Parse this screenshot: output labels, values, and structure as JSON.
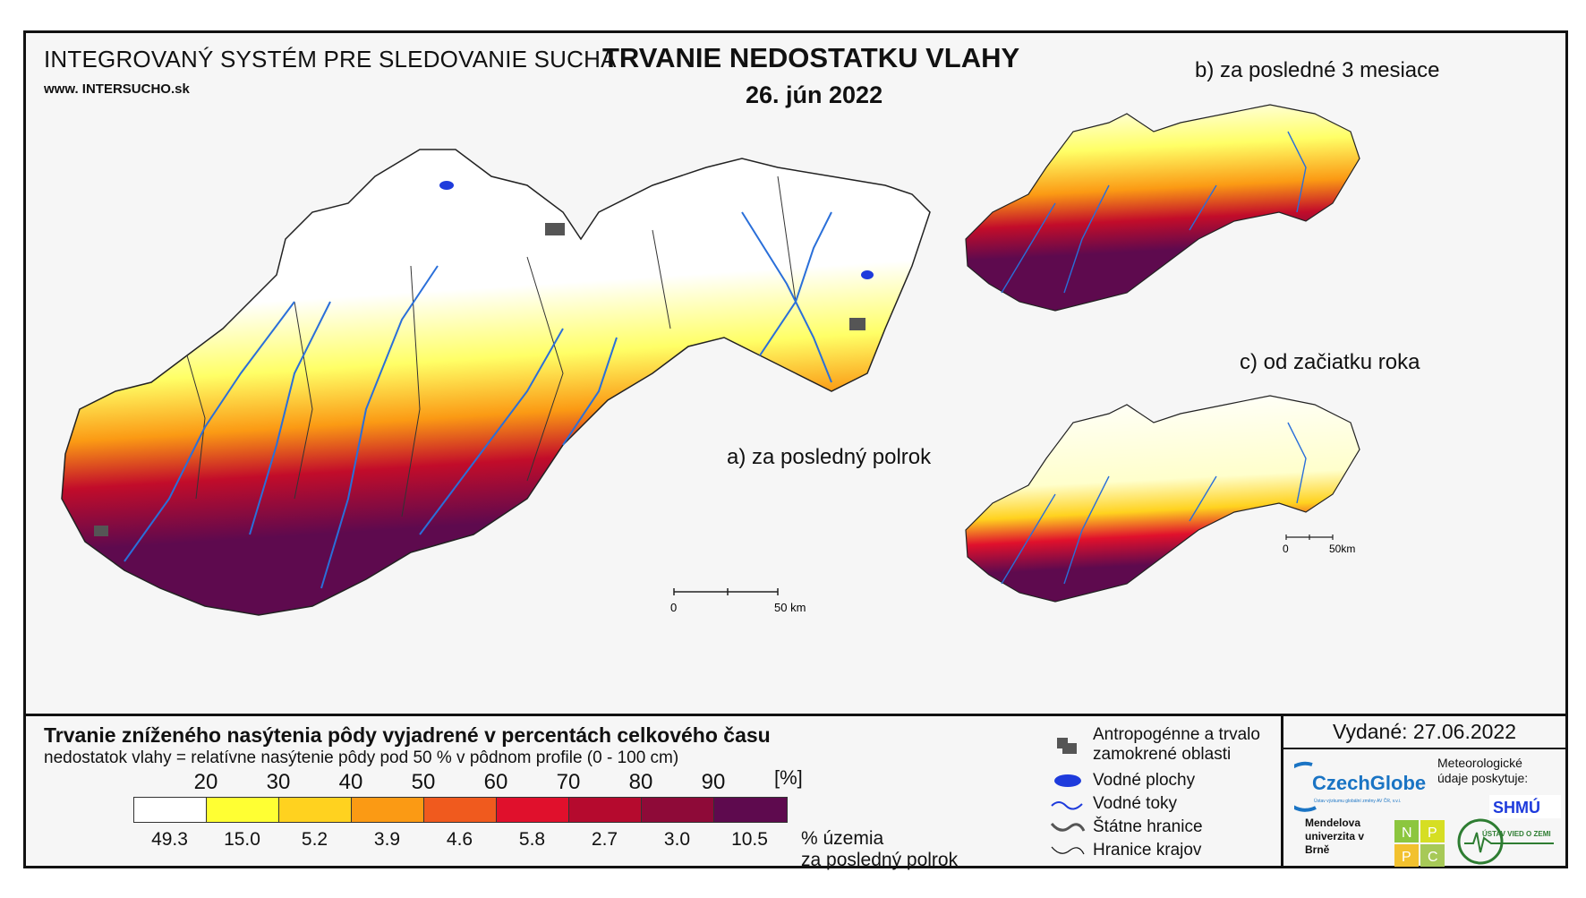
{
  "header": {
    "system_title": "INTEGROVANÝ SYSTÉM PRE SLEDOVANIE SUCHA",
    "website": "www. INTERSUCHO.sk",
    "title": "TRVANIE NEDOSTATKU VLAHY",
    "date": "26. jún 2022"
  },
  "panels": {
    "a_label": "a) za posledný polrok",
    "b_label": "b) za posledné 3 mesiace",
    "c_label": "c) od začiatku roka"
  },
  "scalebars": {
    "main": {
      "zero": "0",
      "end": "50 km"
    },
    "small": {
      "zero": "0",
      "end": "50km"
    }
  },
  "legend": {
    "title": "Trvanie zníženého nasýtenia pôdy vyjadrené v percentách celkového času",
    "subtitle": "nedostatok vlahy = relatívne nasýtenie pôdy pod 50 % v pôdnom profile (0 - 100 cm)",
    "ticks": [
      "20",
      "30",
      "40",
      "50",
      "60",
      "70",
      "80",
      "90"
    ],
    "unit": "[%]",
    "colors": [
      "#ffffff",
      "#ffff33",
      "#ffd21f",
      "#fb9a14",
      "#f05a1e",
      "#e0102c",
      "#b50a2e",
      "#8e0a38",
      "#5e0a4e"
    ],
    "percentages": [
      "49.3",
      "15.0",
      "5.2",
      "3.9",
      "4.6",
      "5.8",
      "2.7",
      "3.0",
      "10.5"
    ],
    "pct_caption_line1": "% územia",
    "pct_caption_line2": "za posledný polrok"
  },
  "symbols": [
    {
      "icon": "urban-area-icon",
      "label": "Antropogénne a trvalo zamokrené oblasti"
    },
    {
      "icon": "water-body-icon",
      "label": "Vodné plochy"
    },
    {
      "icon": "river-icon",
      "label": "Vodné toky"
    },
    {
      "icon": "state-border-icon",
      "label": "Štátne hranice"
    },
    {
      "icon": "region-border-icon",
      "label": "Hranice krajov"
    }
  ],
  "footer": {
    "issued": "Vydané: 27.06.2022",
    "czechglobe": "CzechGlobe",
    "czechglobe_sub": "Ústav výzkumu globální změny AV ČR, v.v.i.",
    "met_data": "Meteorologické údaje poskytuje:",
    "shmu": "SHMÚ",
    "mendel": "Mendelova univerzita v Brně",
    "nppc": [
      "N",
      "P",
      "P",
      "C"
    ],
    "uvz": "ÚSTAV VIED O ZEMI"
  }
}
